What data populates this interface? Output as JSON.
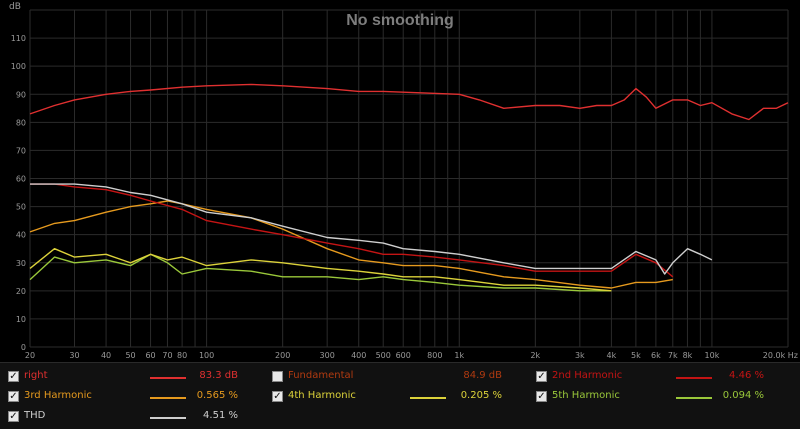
{
  "chart_data": {
    "type": "line",
    "title": "No smoothing",
    "ylabel": "dB",
    "xunit": "Hz",
    "xscale": "log",
    "xlim": [
      20,
      20000
    ],
    "ylim": [
      0,
      120
    ],
    "grid": true,
    "yticks": [
      "0",
      "10",
      "20",
      "30",
      "40",
      "50",
      "60",
      "70",
      "80",
      "90",
      "100",
      "110"
    ],
    "xticks": [
      {
        "v": 20,
        "label": "20"
      },
      {
        "v": 30,
        "label": "30"
      },
      {
        "v": 40,
        "label": "40"
      },
      {
        "v": 50,
        "label": "50"
      },
      {
        "v": 60,
        "label": "60"
      },
      {
        "v": 70,
        "label": "70"
      },
      {
        "v": 80,
        "label": "80"
      },
      {
        "v": 100,
        "label": "100"
      },
      {
        "v": 200,
        "label": "200"
      },
      {
        "v": 300,
        "label": "300"
      },
      {
        "v": 400,
        "label": "400"
      },
      {
        "v": 500,
        "label": "500"
      },
      {
        "v": 600,
        "label": "600"
      },
      {
        "v": 800,
        "label": "800"
      },
      {
        "v": 1000,
        "label": "1k"
      },
      {
        "v": 2000,
        "label": "2k"
      },
      {
        "v": 3000,
        "label": "3k"
      },
      {
        "v": 4000,
        "label": "4k"
      },
      {
        "v": 5000,
        "label": "5k"
      },
      {
        "v": 6000,
        "label": "6k"
      },
      {
        "v": 7000,
        "label": "7k"
      },
      {
        "v": 8000,
        "label": "8k"
      },
      {
        "v": 10000,
        "label": "10k"
      },
      {
        "v": 20000,
        "label": "20.0k Hz"
      }
    ],
    "series": [
      {
        "name": "right",
        "color": "#e03030",
        "x": [
          20,
          25,
          30,
          40,
          50,
          60,
          80,
          100,
          150,
          200,
          300,
          400,
          500,
          700,
          1000,
          1200,
          1500,
          2000,
          2500,
          3000,
          3500,
          4000,
          4500,
          5000,
          5500,
          6000,
          7000,
          8000,
          9000,
          10000,
          12000,
          14000,
          16000,
          18000,
          20000
        ],
        "y": [
          83,
          86,
          88,
          90,
          91,
          91.5,
          92.5,
          93,
          93.5,
          93,
          92,
          91,
          91,
          90.5,
          90,
          88,
          85,
          86,
          86,
          85,
          86,
          86,
          88,
          92,
          89,
          85,
          88,
          88,
          86,
          87,
          83,
          81,
          85,
          85,
          87
        ]
      },
      {
        "name": "THD",
        "color": "#cfcfcf",
        "x": [
          20,
          25,
          30,
          40,
          50,
          60,
          80,
          100,
          150,
          200,
          300,
          400,
          500,
          600,
          800,
          1000,
          1500,
          2000,
          3000,
          4000,
          5000,
          6000,
          6500,
          7000,
          8000,
          9000,
          10000
        ],
        "y": [
          58,
          58,
          58,
          57,
          55,
          54,
          51,
          48,
          46,
          43,
          39,
          38,
          37,
          35,
          34,
          33,
          30,
          28,
          28,
          28,
          34,
          31,
          26,
          30,
          35,
          33,
          31
        ]
      },
      {
        "name": "2nd Harmonic",
        "color": "#c41414",
        "x": [
          20,
          25,
          30,
          40,
          50,
          60,
          80,
          100,
          150,
          200,
          300,
          400,
          500,
          600,
          800,
          1000,
          1500,
          2000,
          3000,
          4000,
          5000,
          6000,
          7000
        ],
        "y": [
          58,
          58,
          57,
          56,
          54,
          52,
          49,
          45,
          42,
          40,
          37,
          35,
          33,
          33,
          32,
          31,
          29,
          27,
          27,
          27,
          33,
          30,
          25
        ]
      },
      {
        "name": "3rd Harmonic",
        "color": "#e69a1e",
        "x": [
          20,
          25,
          30,
          40,
          50,
          60,
          70,
          80,
          100,
          150,
          200,
          300,
          400,
          500,
          600,
          800,
          1000,
          1500,
          2000,
          3000,
          4000,
          5000,
          6000,
          7000
        ],
        "y": [
          41,
          44,
          45,
          48,
          50,
          51,
          52,
          51,
          49,
          46,
          42,
          35,
          31,
          30,
          29,
          29,
          28,
          25,
          24,
          22,
          21,
          23,
          23,
          24
        ]
      },
      {
        "name": "4th Harmonic",
        "color": "#dcd23a",
        "x": [
          20,
          25,
          30,
          40,
          50,
          60,
          70,
          80,
          100,
          150,
          200,
          300,
          400,
          500,
          600,
          800,
          1000,
          1500,
          2000,
          3000,
          4000
        ],
        "y": [
          28,
          35,
          32,
          33,
          30,
          33,
          31,
          32,
          29,
          31,
          30,
          28,
          27,
          26,
          25,
          25,
          24,
          22,
          22,
          21,
          20
        ]
      },
      {
        "name": "5th Harmonic",
        "color": "#9ac83a",
        "x": [
          20,
          25,
          30,
          40,
          50,
          60,
          70,
          80,
          100,
          150,
          200,
          300,
          400,
          500,
          600,
          800,
          1000,
          1500,
          2000,
          3000,
          4000
        ],
        "y": [
          24,
          32,
          30,
          31,
          29,
          33,
          30,
          26,
          28,
          27,
          25,
          25,
          24,
          25,
          24,
          23,
          22,
          21,
          21,
          20,
          20
        ]
      }
    ]
  },
  "legend": {
    "right": {
      "name": "right",
      "value": "83.3 dB",
      "checked": "✓"
    },
    "fundamental": {
      "name": "Fundamental",
      "value": "84.9 dB",
      "checked": ""
    },
    "h2": {
      "name": "2nd Harmonic",
      "value": "4.46 %",
      "checked": "✓"
    },
    "h3": {
      "name": "3rd Harmonic",
      "value": "0.565 %",
      "checked": "✓"
    },
    "h4": {
      "name": "4th Harmonic",
      "value": "0.205 %",
      "checked": "✓"
    },
    "h5": {
      "name": "5th Harmonic",
      "value": "0.094 %",
      "checked": "✓"
    },
    "thd": {
      "name": "THD",
      "value": "4.51 %",
      "checked": "✓"
    }
  },
  "colors": {
    "right": "#e03030",
    "fundamental": "#b03a10",
    "h2": "#c41414",
    "h3": "#e69a1e",
    "h4": "#dcd23a",
    "h5": "#9ac83a",
    "thd": "#cfcfcf",
    "grid": "#2b2b2b",
    "axis_text": "#9a9a9a",
    "title": "#7d7d7d"
  }
}
